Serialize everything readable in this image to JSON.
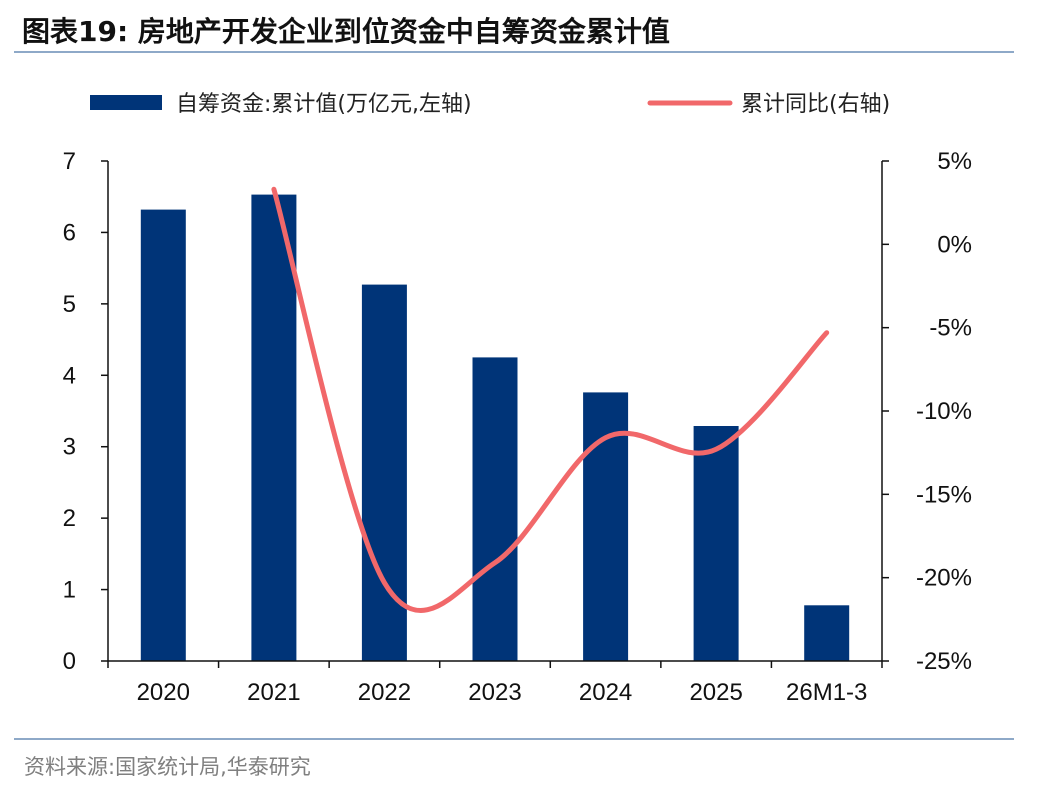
{
  "page": {
    "title": "图表19:  房地产开发企业到位资金中自筹资金累计值",
    "source": "资料来源:国家统计局,华泰研究"
  },
  "colors": {
    "bar": "#003478",
    "line": "#f1686a",
    "rule": "#8ea9c8",
    "axis": "#111111"
  },
  "chart_data": {
    "type": "bar",
    "categories": [
      "2020",
      "2021",
      "2022",
      "2023",
      "2024",
      "2025",
      "26M1-3"
    ],
    "series": [
      {
        "name": "自筹资金:累计值(万亿元,左轴)",
        "type": "bar",
        "axis": "left",
        "values": [
          6.32,
          6.53,
          5.27,
          4.25,
          3.76,
          3.29,
          0.78
        ]
      },
      {
        "name": "累计同比(右轴)",
        "type": "line",
        "axis": "right",
        "values": [
          null,
          3.3,
          -20.3,
          -19.1,
          -11.6,
          -12.3,
          -5.3
        ]
      }
    ],
    "y_left": {
      "min": 0,
      "max": 7,
      "ticks": [
        "0",
        "1",
        "2",
        "3",
        "4",
        "5",
        "6",
        "7"
      ]
    },
    "y_right": {
      "min": -25,
      "max": 5,
      "ticks": [
        "-25%",
        "-20%",
        "-15%",
        "-10%",
        "-5%",
        "0%",
        "5%"
      ]
    },
    "legend_position": "top",
    "grid": false
  }
}
